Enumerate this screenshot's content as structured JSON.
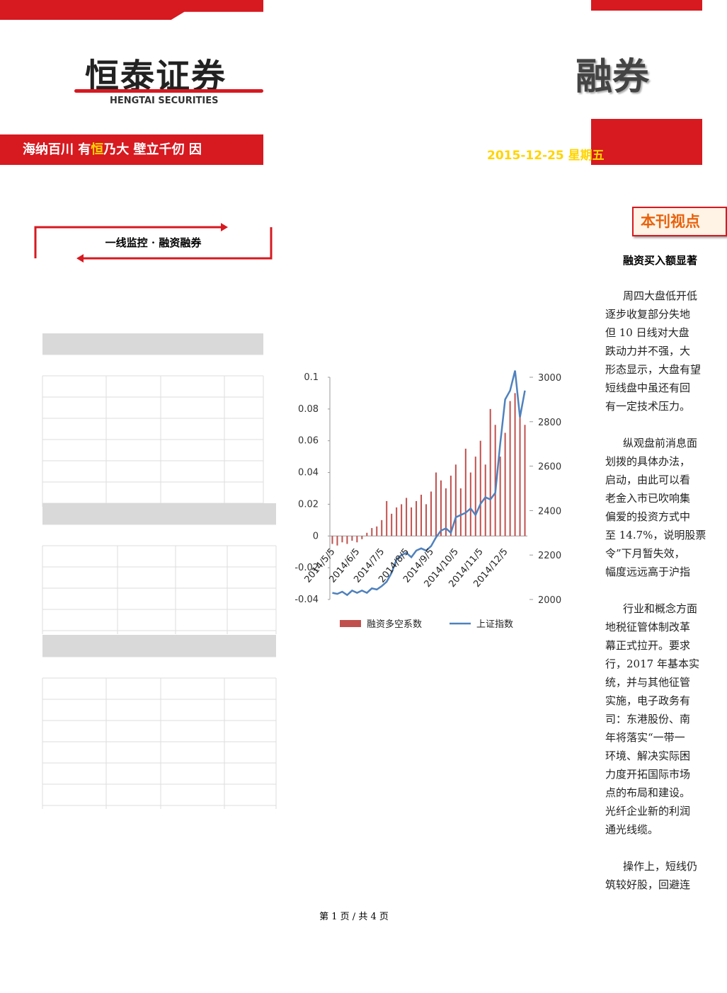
{
  "header": {
    "logo_cn": "恒泰证券",
    "logo_en": "HENGTAI SECURITIES",
    "slogan_a": "海纳百川 有",
    "slogan_b": "恒",
    "slogan_c": "乃大  壁立千仞 因",
    "title_fragment": "融券",
    "date": "2015-12-25 星期五"
  },
  "sidebar": {
    "section_title": "一线监控 · 融资融券"
  },
  "chart_data": {
    "type": "bar",
    "categories": [
      "2014/5/5",
      null,
      null,
      null,
      null,
      "2014/6/5",
      null,
      null,
      null,
      null,
      "2014/7/5",
      null,
      null,
      null,
      null,
      "2014/8/5",
      null,
      null,
      null,
      null,
      "2014/9/5",
      null,
      null,
      null,
      null,
      "2014/10/5",
      null,
      null,
      null,
      null,
      "2014/11/5",
      null,
      null,
      null,
      null,
      "2014/12/5",
      null,
      null,
      null,
      null
    ],
    "series": [
      {
        "name": "融资多空系数",
        "type": "bar",
        "color": "#c0504d",
        "values": [
          -0.005,
          -0.006,
          -0.004,
          -0.005,
          -0.003,
          -0.004,
          -0.002,
          0.002,
          0.005,
          0.006,
          0.01,
          0.022,
          0.014,
          0.018,
          0.02,
          0.024,
          0.018,
          0.022,
          0.026,
          0.02,
          0.028,
          0.04,
          0.035,
          0.03,
          0.038,
          0.045,
          0.03,
          0.055,
          0.04,
          0.05,
          0.06,
          0.045,
          0.08,
          0.07,
          0.05,
          0.065,
          0.085,
          0.09,
          0.075,
          0.07
        ]
      },
      {
        "name": "上证指数",
        "type": "line",
        "axis": "y2",
        "color": "#4f81bd",
        "values": [
          2030,
          2025,
          2035,
          2020,
          2040,
          2030,
          2040,
          2030,
          2050,
          2045,
          2060,
          2080,
          2120,
          2180,
          2200,
          2210,
          2190,
          2220,
          2230,
          2220,
          2240,
          2280,
          2310,
          2320,
          2300,
          2370,
          2380,
          2390,
          2410,
          2380,
          2430,
          2460,
          2450,
          2480,
          2700,
          2900,
          2940,
          3030,
          2820,
          2940
        ]
      }
    ],
    "ylim": [
      -0.04,
      0.1
    ],
    "yticks": [
      -0.04,
      -0.02,
      0,
      0.02,
      0.04,
      0.06,
      0.08,
      0.1
    ],
    "y2lim": [
      2000,
      3000
    ],
    "y2ticks": [
      2000,
      2200,
      2400,
      2600,
      2800,
      3000
    ],
    "legend": "bottom"
  },
  "article": {
    "section_title": "本刊视点",
    "headline": "融资买入额显著",
    "paragraphs": [
      [
        "周四大盘低开低",
        "逐步收复部分失地",
        "但 10 日线对大盘",
        "跌动力并不强，大",
        "形态显示，大盘有望",
        "短线盘中虽还有回",
        "有一定技术压力。"
      ],
      [
        "纵观盘前消息面",
        "划拨的具体办法，",
        "启动，由此可以看",
        "老金入市已吹响集",
        "偏爱的投资方式中",
        "至 14.7%，说明股票",
        "令”下月暂失效，",
        "幅度远远高于沪指"
      ],
      [
        "行业和概念方面",
        "地税征管体制改革",
        "幕正式拉开。要求",
        "行，2017 年基本实",
        "统，并与其他征管",
        "实施，电子政务有",
        "司：东港股份、南",
        "年将落实“一带一",
        "环境、解决实际困",
        "力度开拓国际市场",
        "点的布局和建设。",
        "光纤企业新的利润",
        "通光线缆。"
      ],
      [
        "操作上，短线仍",
        "筑较好股，回避连"
      ]
    ]
  },
  "footer": "第 1 页 / 共 4 页"
}
